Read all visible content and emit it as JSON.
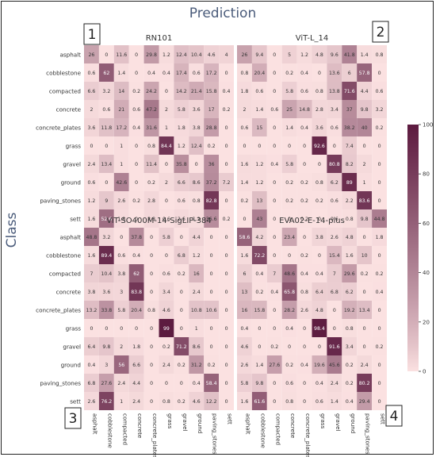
{
  "title": "Prediction",
  "ylabel": "Class",
  "corner_labels": [
    "1",
    "2",
    "3",
    "4"
  ],
  "chart_data": {
    "type": "heatmap",
    "classes": [
      "asphalt",
      "cobblestone",
      "compacted",
      "concrete",
      "concrete_plates",
      "grass",
      "gravel",
      "ground",
      "paving_stones",
      "sett"
    ],
    "colorbar": {
      "min": 0,
      "max": 100,
      "ticks": [
        0,
        20,
        40,
        60,
        80,
        100
      ],
      "low_color": "#fbe1e1",
      "high_color": "#5c1a3f"
    },
    "panels": [
      {
        "title": "RN101",
        "values": [
          [
            "26",
            "0",
            "11.6",
            "0",
            "29.8",
            "1.2",
            "12.4",
            "10.4",
            "4.6",
            "4"
          ],
          [
            "0.6",
            "62",
            "1.4",
            "0",
            "0.4",
            "0.4",
            "17.4",
            "0.6",
            "17.2",
            "0"
          ],
          [
            "6.6",
            "3.2",
            "14",
            "0.2",
            "24.2",
            "0",
            "14.2",
            "21.4",
            "15.8",
            "0.4"
          ],
          [
            "2",
            "0.6",
            "21",
            "0.6",
            "47.2",
            "2",
            "5.8",
            "3.6",
            "17",
            "0.2"
          ],
          [
            "3.6",
            "11.8",
            "17.2",
            "0.4",
            "31.6",
            "1",
            "1.8",
            "3.8",
            "28.8",
            "0"
          ],
          [
            "0",
            "0",
            "1",
            "0",
            "0.8",
            "84.4",
            "1.2",
            "12.4",
            "0.2",
            "0"
          ],
          [
            "2.4",
            "13.4",
            "1",
            "0",
            "11.4",
            "0",
            "35.8",
            "0",
            "36",
            "0"
          ],
          [
            "0.6",
            "0",
            "42.6",
            "0",
            "0.2",
            "2",
            "6.6",
            "8.6",
            "37.2",
            "7.2"
          ],
          [
            "1.2",
            "9",
            "2.6",
            "0.2",
            "2.8",
            "0",
            "0.6",
            "0.8",
            "82.8",
            "0"
          ],
          [
            "1.6",
            "52.6",
            "1.8",
            "0",
            "2.8",
            "0.6",
            "2.6",
            "1.2",
            "36.6",
            "0.2"
          ]
        ]
      },
      {
        "title": "ViT-L_14",
        "values": [
          [
            "26",
            "9.4",
            "0",
            "5",
            "1.2",
            "4.8",
            "9.6",
            "41.8",
            "1.4",
            "0.8"
          ],
          [
            "0.8",
            "20.4",
            "0",
            "0.2",
            "0.4",
            "0",
            "13.6",
            "6",
            "57.8",
            "0"
          ],
          [
            "1.8",
            "0.6",
            "0",
            "5.8",
            "0.6",
            "0.8",
            "13.8",
            "71.6",
            "4.4",
            "0.6"
          ],
          [
            "2",
            "1.4",
            "0.6",
            "25",
            "14.8",
            "2.8",
            "3.4",
            "37",
            "9.8",
            "3.2"
          ],
          [
            "0.6",
            "15",
            "0",
            "1.4",
            "0.4",
            "3.6",
            "0.6",
            "38.2",
            "40",
            "0.2"
          ],
          [
            "0",
            "0",
            "0",
            "0",
            "0",
            "92.6",
            "0",
            "7.4",
            "0",
            "0"
          ],
          [
            "1.6",
            "1.2",
            "0.4",
            "5.8",
            "0",
            "0",
            "80.8",
            "8.2",
            "2",
            "0"
          ],
          [
            "1.4",
            "1.2",
            "0",
            "0.2",
            "0.2",
            "0.8",
            "6.2",
            "89",
            "1",
            "0"
          ],
          [
            "0.2",
            "13",
            "0",
            "0.2",
            "0.2",
            "0.2",
            "0.6",
            "2.2",
            "83.6",
            "0"
          ],
          [
            "0",
            "43",
            "0",
            "0",
            "0.2",
            "0",
            "0.6",
            "0.8",
            "9.8",
            "44.8"
          ]
        ]
      },
      {
        "title": "ViT-SO400M-14-SigLIP-384",
        "values": [
          [
            "48.8",
            "3.2",
            "0",
            "37.8",
            "0",
            "5.8",
            "0",
            "4.4",
            "0",
            "0"
          ],
          [
            "1.6",
            "89.4",
            "0.6",
            "0.4",
            "0",
            "0",
            "6.8",
            "1.2",
            "0",
            "0"
          ],
          [
            "7",
            "10.4",
            "3.8",
            "62",
            "0",
            "0.6",
            "0.2",
            "16",
            "0",
            "0"
          ],
          [
            "3.8",
            "3.6",
            "3",
            "83.8",
            "0",
            "3.4",
            "0",
            "2.4",
            "0",
            "0"
          ],
          [
            "13.2",
            "33.8",
            "5.8",
            "20.4",
            "0.8",
            "4.6",
            "0",
            "10.8",
            "10.6",
            "0"
          ],
          [
            "0",
            "0",
            "0",
            "0",
            "0",
            "99",
            "0",
            "1",
            "0",
            "0"
          ],
          [
            "6.4",
            "9.8",
            "2",
            "1.8",
            "0",
            "0.2",
            "71.2",
            "8.6",
            "0",
            "0"
          ],
          [
            "0.4",
            "3",
            "56",
            "6.6",
            "0",
            "2.4",
            "0.2",
            "31.2",
            "0.2",
            "0"
          ],
          [
            "6.8",
            "27.6",
            "2.4",
            "4.4",
            "0",
            "0",
            "0",
            "0.4",
            "58.4",
            "0"
          ],
          [
            "2.6",
            "76.2",
            "1",
            "2.4",
            "0",
            "0.8",
            "0.2",
            "4.6",
            "12.2",
            "0"
          ]
        ]
      },
      {
        "title": "EVA02-E-14-plus",
        "values": [
          [
            "58.6",
            "4.2",
            "0",
            "23.4",
            "0",
            "3.8",
            "2.6",
            "4.8",
            "0",
            "1.8"
          ],
          [
            "1.6",
            "72.2",
            "0",
            "0",
            "0.2",
            "0",
            "15.4",
            "1.6",
            "10",
            "0"
          ],
          [
            "6",
            "0.4",
            "7",
            "48.6",
            "0.4",
            "0.4",
            "7",
            "29.6",
            "0.2",
            "0.2"
          ],
          [
            "13",
            "0.2",
            "0.4",
            "65.8",
            "0.8",
            "6.4",
            "6.8",
            "6.2",
            "0",
            "0.4"
          ],
          [
            "16",
            "15.8",
            "0",
            "28.2",
            "2.6",
            "4.8",
            "0",
            "19.2",
            "13.4",
            "0"
          ],
          [
            "0.4",
            "0",
            "0",
            "0.4",
            "0",
            "98.4",
            "0",
            "0.8",
            "0",
            "0"
          ],
          [
            "4.6",
            "0",
            "0.2",
            "0",
            "0",
            "0",
            "91.6",
            "3.4",
            "0",
            "0.2"
          ],
          [
            "2.6",
            "1.4",
            "27.6",
            "0.2",
            "0.4",
            "19.6",
            "45.6",
            "0.2",
            "2.4",
            "0"
          ],
          [
            "5.8",
            "9.8",
            "0",
            "0.6",
            "0",
            "0.4",
            "2.4",
            "0.2",
            "80.2",
            "0"
          ],
          [
            "1.6",
            "61.6",
            "0",
            "0.8",
            "0",
            "0.6",
            "1.4",
            "0.4",
            "29.4",
            "0"
          ]
        ]
      }
    ]
  }
}
